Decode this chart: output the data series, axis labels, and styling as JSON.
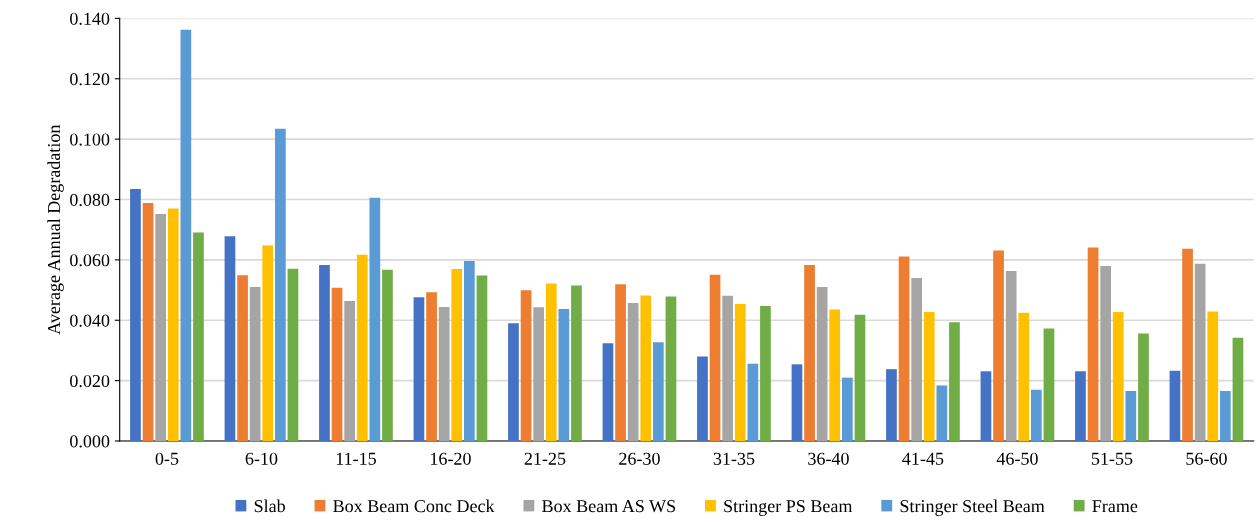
{
  "chart_data": {
    "type": "bar",
    "ylabel": "Average Annual Degradation",
    "categories": [
      "0-5",
      "6-10",
      "11-15",
      "16-20",
      "21-25",
      "26-30",
      "31-35",
      "36-40",
      "41-45",
      "46-50",
      "51-55",
      "56-60"
    ],
    "series": [
      {
        "name": "Slab",
        "color": "#4472c4",
        "values": [
          0.0835,
          0.0678,
          0.0583,
          0.0476,
          0.039,
          0.0324,
          0.028,
          0.0254,
          0.0238,
          0.0231,
          0.0231,
          0.0233
        ]
      },
      {
        "name": "Box Beam Conc Deck",
        "color": "#ed7d31",
        "values": [
          0.0788,
          0.0549,
          0.0508,
          0.0493,
          0.0499,
          0.0519,
          0.0551,
          0.0583,
          0.0611,
          0.0631,
          0.0641,
          0.0637
        ]
      },
      {
        "name": "Box Beam AS WS",
        "color": "#a5a5a5",
        "values": [
          0.0752,
          0.051,
          0.0464,
          0.0444,
          0.0443,
          0.0457,
          0.0481,
          0.051,
          0.054,
          0.0563,
          0.058,
          0.0587
        ]
      },
      {
        "name": "Stringer PS Beam",
        "color": "#ffc000",
        "values": [
          0.077,
          0.0648,
          0.0617,
          0.057,
          0.0522,
          0.0482,
          0.0454,
          0.0436,
          0.0427,
          0.0425,
          0.0427,
          0.0429
        ]
      },
      {
        "name": "Stringer Steel Beam",
        "color": "#5b9bd5",
        "values": [
          0.1362,
          0.1034,
          0.0806,
          0.0596,
          0.0437,
          0.0327,
          0.0256,
          0.021,
          0.0184,
          0.017,
          0.0166,
          0.0166
        ]
      },
      {
        "name": "Frame",
        "color": "#70ad47",
        "values": [
          0.0691,
          0.0571,
          0.0567,
          0.0548,
          0.0515,
          0.0479,
          0.0447,
          0.0418,
          0.0393,
          0.0373,
          0.0356,
          0.0342
        ]
      }
    ],
    "ylim": [
      0,
      0.14
    ],
    "yticks": [
      {
        "value": 0,
        "label": "0.000"
      },
      {
        "value": 0.02,
        "label": "0.020"
      },
      {
        "value": 0.04,
        "label": "0.040"
      },
      {
        "value": 0.06,
        "label": "0.060"
      },
      {
        "value": 0.08,
        "label": "0.080"
      },
      {
        "value": 0.1,
        "label": "0.100"
      },
      {
        "value": 0.12,
        "label": "0.120"
      },
      {
        "value": 0.14,
        "label": "0.140"
      }
    ],
    "grid": "y",
    "legend": "bottom"
  }
}
